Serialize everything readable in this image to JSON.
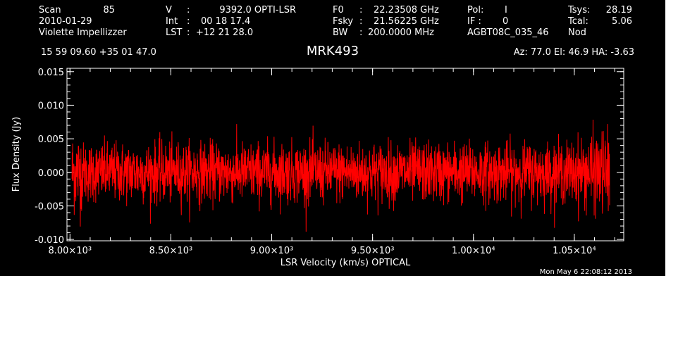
{
  "header": {
    "col1": {
      "scan_label": "Scan",
      "scan_value": "85",
      "date": "2010-01-29",
      "observer": "Violette Impellizzer"
    },
    "col2": {
      "v_label": "V",
      "v_sep": ":",
      "v_value": "9392.0 OPTI-LSR",
      "int_label": "Int",
      "int_sep": ":",
      "int_value": "00 18 17.4",
      "lst_label": "LST",
      "lst_sep": ":",
      "lst_value": "+12 21 28.0"
    },
    "col3": {
      "f0_label": "F0",
      "f0_sep": ":",
      "f0_value": "22.23508 GHz",
      "fsky_label": "Fsky",
      "fsky_sep": ":",
      "fsky_value": "21.56225 GHz",
      "bw_label": "BW",
      "bw_sep": ":",
      "bw_value": "200.0000 MHz"
    },
    "col4": {
      "pol_label": "Pol:",
      "pol_value": "I",
      "if_label": "IF :",
      "if_value": "0",
      "project": "AGBT08C_035_46"
    },
    "col5": {
      "tsys_label": "Tsys:",
      "tsys_value": "28.19",
      "tcal_label": "Tcal:",
      "tcal_value": "5.06",
      "mode": "Nod"
    },
    "coords": "15 59 09.60  +35 01 47.0",
    "az_el_ha": "Az:  77.0  El:  46.9  HA: -3.63"
  },
  "footer": {
    "timestamp": "Mon May  6 22:08:12 2013"
  },
  "colors": {
    "background": "#000000",
    "axes": "#ffffff",
    "trace": "#ff0000"
  },
  "chart_data": {
    "type": "line",
    "title": "MRK493",
    "xlabel": "LSR Velocity (km/s) OPTICAL",
    "ylabel": "Flux Density (Jy)",
    "xlim": [
      7985,
      10745
    ],
    "ylim": [
      -0.0102,
      0.0155
    ],
    "x_ticks": [
      {
        "value": 8000,
        "label": "8.00×10³"
      },
      {
        "value": 8500,
        "label": "8.50×10³"
      },
      {
        "value": 9000,
        "label": "9.00×10³"
      },
      {
        "value": 9500,
        "label": "9.50×10³"
      },
      {
        "value": 10000,
        "label": "1.00×10⁴"
      },
      {
        "value": 10500,
        "label": "1.05×10⁴"
      }
    ],
    "y_ticks": [
      {
        "value": -0.01,
        "label": "-0.010"
      },
      {
        "value": -0.005,
        "label": "-0.005"
      },
      {
        "value": 0.0,
        "label": "0.000"
      },
      {
        "value": 0.005,
        "label": "0.005"
      },
      {
        "value": 0.01,
        "label": "0.010"
      },
      {
        "value": 0.015,
        "label": "0.015"
      }
    ],
    "grid": false,
    "series": [
      {
        "color": "#ff0000",
        "x_start": 8010,
        "x_end": 10675,
        "mean": 0.0,
        "noise_sigma": 0.0022,
        "envelope_min": -0.0098,
        "envelope_max": 0.0115
      }
    ]
  }
}
